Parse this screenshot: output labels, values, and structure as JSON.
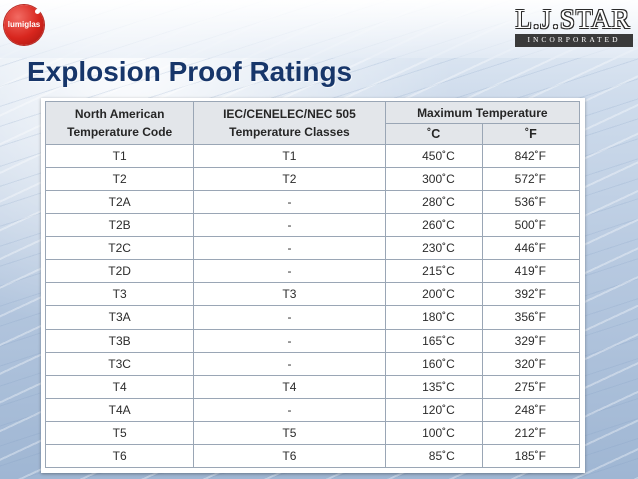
{
  "header": {
    "left_logo_text": "lumiglas",
    "right_logo_name": "L.J.STAR",
    "right_logo_sub": "INCORPORATED"
  },
  "title": "Explosion Proof Ratings",
  "table": {
    "headers": {
      "north_american": [
        "North American",
        "Temperature Code"
      ],
      "iec": [
        "IEC/CENELEC/NEC 505",
        "Temperature Classes"
      ],
      "max_temp": "Maximum Temperature",
      "unit_c": "˚C",
      "unit_f": "˚F"
    },
    "rows": [
      {
        "na": "T1",
        "iec": "T1",
        "c": "450˚C",
        "f": "842˚F"
      },
      {
        "na": "T2",
        "iec": "T2",
        "c": "300˚C",
        "f": "572˚F"
      },
      {
        "na": "T2A",
        "iec": "-",
        "c": "280˚C",
        "f": "536˚F"
      },
      {
        "na": "T2B",
        "iec": "-",
        "c": "260˚C",
        "f": "500˚F"
      },
      {
        "na": "T2C",
        "iec": "-",
        "c": "230˚C",
        "f": "446˚F"
      },
      {
        "na": "T2D",
        "iec": "-",
        "c": "215˚C",
        "f": "419˚F"
      },
      {
        "na": "T3",
        "iec": "T3",
        "c": "200˚C",
        "f": "392˚F"
      },
      {
        "na": "T3A",
        "iec": "-",
        "c": "180˚C",
        "f": "356˚F"
      },
      {
        "na": "T3B",
        "iec": "-",
        "c": "165˚C",
        "f": "329˚F"
      },
      {
        "na": "T3C",
        "iec": "-",
        "c": "160˚C",
        "f": "320˚F"
      },
      {
        "na": "T4",
        "iec": "T4",
        "c": "135˚C",
        "f": "275˚F"
      },
      {
        "na": "T4A",
        "iec": "-",
        "c": "120˚C",
        "f": "248˚F"
      },
      {
        "na": "T5",
        "iec": "T5",
        "c": "100˚C",
        "f": "212˚F"
      },
      {
        "na": "T6",
        "iec": "T6",
        "c": "85˚C",
        "f": "185˚F"
      }
    ]
  },
  "colors": {
    "title": "#17366a",
    "logo_red": "#d8261e",
    "header_fill": "#e3e6ea",
    "grid": "#9aa6b5"
  }
}
